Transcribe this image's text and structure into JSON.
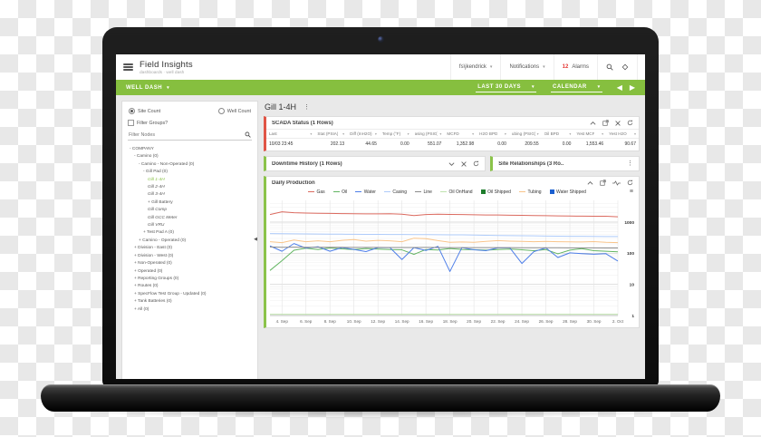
{
  "app": {
    "title": "Field Insights",
    "breadcrumb": "dashboards · well dash",
    "user": "fs\\jkendrick",
    "notifications": "Notifications",
    "alarm_count": "12",
    "alarm_label": "Alarms"
  },
  "navbar": {
    "dashboard": "WELL DASH",
    "date_range": "LAST 30 DAYS",
    "calendar": "CALENDAR"
  },
  "sidebar": {
    "site_count": "Site Count",
    "well_count": "Well Count",
    "filter_groups": "Filter Groups?",
    "filter_placeholder": "Filter Nodes",
    "tree": [
      {
        "label": "COMPANY",
        "prefix": "-",
        "level": 0
      },
      {
        "label": "Camino (0)",
        "prefix": "-",
        "level": 1
      },
      {
        "label": "Camino - Non-Operated (0)",
        "prefix": "-",
        "level": 2
      },
      {
        "label": "Gill Pad (0)",
        "prefix": "-",
        "level": 3
      },
      {
        "label": "Gill 1-4H",
        "prefix": "",
        "level": 4,
        "selected": true,
        "italic": true
      },
      {
        "label": "Gill 2-4H",
        "prefix": "",
        "level": 4,
        "italic": true
      },
      {
        "label": "Gill 3-4H",
        "prefix": "",
        "level": 4,
        "italic": true
      },
      {
        "label": "Gill Battery",
        "prefix": "+",
        "level": 4
      },
      {
        "label": "Gill Comp",
        "prefix": "",
        "level": 4,
        "italic": true
      },
      {
        "label": "Gill GCC Meter",
        "prefix": "",
        "level": 4,
        "italic": true
      },
      {
        "label": "Gill VRU",
        "prefix": "",
        "level": 4,
        "italic": true
      },
      {
        "label": "Test Pad A (0)",
        "prefix": "+",
        "level": 3
      },
      {
        "label": "Camino - Operated (0)",
        "prefix": "+",
        "level": 2
      },
      {
        "label": "Division - East (0)",
        "prefix": "+",
        "level": 1
      },
      {
        "label": "Division - West (0)",
        "prefix": "+",
        "level": 1
      },
      {
        "label": "Non-Operated (0)",
        "prefix": "+",
        "level": 1
      },
      {
        "label": "Operated (0)",
        "prefix": "+",
        "level": 1
      },
      {
        "label": "Reporting Groups (0)",
        "prefix": "+",
        "level": 1
      },
      {
        "label": "Routes (0)",
        "prefix": "+",
        "level": 1
      },
      {
        "label": "SpecFlow Test Group - Updated (0)",
        "prefix": "+",
        "level": 1
      },
      {
        "label": "Tank Batteries (0)",
        "prefix": "+",
        "level": 1
      },
      {
        "label": "All (0)",
        "prefix": "+",
        "level": 1
      }
    ]
  },
  "main": {
    "well_title": "Gill 1-4H",
    "scada": {
      "title": "SCADA Status (1 Rows)",
      "columns": [
        "Last",
        "Stat (PSIA)",
        "Diff (InH2O)",
        "Temp (°F)",
        "asing (PSIG)",
        "MCFD",
        "H2O BPD",
        "ubing (PSIG)",
        "Oil BPD",
        "Yest MCF",
        "Yest H2O"
      ],
      "rows": [
        [
          "10/03 23:45",
          "202.13",
          "44.65",
          "0.00",
          "551.07",
          "1,352.98",
          "0.00",
          "209.55",
          "0.00",
          "1,553.46",
          "90.67"
        ]
      ]
    },
    "downtime": {
      "title": "Downtime History (1 Rows)"
    },
    "relationships": {
      "title": "Site Relationships (3 Ro.."
    },
    "production": {
      "title": "Daily Production"
    }
  },
  "colors": {
    "nav_green": "#86bf3f",
    "panel_green": "#8bc34a",
    "scada_red": "#e05445",
    "alarm_red": "#e53935"
  },
  "icons": {
    "caret_down": "▾",
    "kebab": "⋮",
    "prev": "◀",
    "next": "▶",
    "menu": "≡"
  },
  "chart_data": {
    "type": "line",
    "title": "Daily Production",
    "y_scale": "log",
    "ylim": [
      1,
      5000
    ],
    "y_ticks": [
      1000,
      100,
      10,
      1
    ],
    "grid": true,
    "legend_position": "top",
    "x_points": 30,
    "x_labels": [
      "4. Sep",
      "6. Sep",
      "8. Sep",
      "10. Sep",
      "12. Sep",
      "14. Sep",
      "16. Sep",
      "18. Sep",
      "20. Sep",
      "22. Sep",
      "24. Sep",
      "26. Sep",
      "28. Sep",
      "30. Sep",
      "2. Oct"
    ],
    "series": [
      {
        "name": "Gas",
        "color": "#db6a5f",
        "marker": "line",
        "values": [
          1750,
          2150,
          2000,
          1950,
          1930,
          1900,
          1880,
          1860,
          1850,
          1840,
          1860,
          1800,
          1620,
          1750,
          1800,
          1770,
          1750,
          1730,
          1700,
          1690,
          1670,
          1650,
          1630,
          1610,
          1590,
          1570,
          1560,
          1550,
          1540,
          1480
        ]
      },
      {
        "name": "Oil",
        "color": "#62b561",
        "marker": "line",
        "values": [
          28,
          58,
          125,
          145,
          132,
          148,
          138,
          132,
          142,
          136,
          131,
          129,
          92,
          132,
          127,
          142,
          132,
          130,
          126,
          132,
          136,
          129,
          121,
          131,
          96,
          126,
          141,
          121,
          116,
          111
        ]
      },
      {
        "name": "Water",
        "color": "#4d7ee8",
        "marker": "line",
        "values": [
          172,
          116,
          205,
          146,
          162,
          116,
          152,
          133,
          113,
          152,
          152,
          63,
          152,
          123,
          167,
          26,
          152,
          129,
          121,
          149,
          149,
          47,
          113,
          149,
          73,
          103,
          97,
          93,
          97,
          56
        ]
      },
      {
        "name": "Casing",
        "color": "#aecbfa",
        "marker": "line",
        "values": [
          430,
          425,
          420,
          418,
          415,
          412,
          410,
          408,
          406,
          404,
          402,
          400,
          398,
          396,
          394,
          392,
          390,
          385,
          378,
          372,
          368,
          365,
          362,
          358,
          355,
          352,
          350,
          348,
          346,
          344
        ]
      },
      {
        "name": "Line",
        "color": "#8a8a8a",
        "marker": "line",
        "values": [
          160,
          155,
          157,
          156,
          155,
          156,
          155,
          154,
          154,
          154,
          153,
          153,
          153,
          154,
          153,
          152,
          152,
          152,
          151,
          151,
          151,
          150,
          150,
          150,
          150,
          149,
          149,
          149,
          148,
          148
        ]
      },
      {
        "name": "Oil OnHand",
        "color": "#bfe3ae",
        "marker": "line",
        "values": [
          1.1,
          1.1,
          1.1,
          1.1,
          1.1,
          1.1,
          1.1,
          1.1,
          1.1,
          1.1,
          1.1,
          1.1,
          1.1,
          1.1,
          1.1,
          1.1,
          1.1,
          1.1,
          1.1,
          1.1,
          1.1,
          1.1,
          1.1,
          1.1,
          1.1,
          1.1,
          1.1,
          1.1,
          1.1,
          1.1
        ]
      },
      {
        "name": "Oil Shipped",
        "color": "#1e7d2c",
        "marker": "square",
        "values": []
      },
      {
        "name": "Tubing",
        "color": "#f8c48a",
        "marker": "line",
        "values": [
          235,
          220,
          265,
          235,
          250,
          235,
          260,
          275,
          245,
          260,
          250,
          235,
          305,
          295,
          255,
          225,
          230,
          225,
          240,
          255,
          245,
          240,
          235,
          240,
          235,
          232,
          230,
          236,
          225,
          220
        ]
      },
      {
        "name": "Water Shipped",
        "color": "#1a5fd0",
        "marker": "square",
        "values": []
      }
    ]
  }
}
